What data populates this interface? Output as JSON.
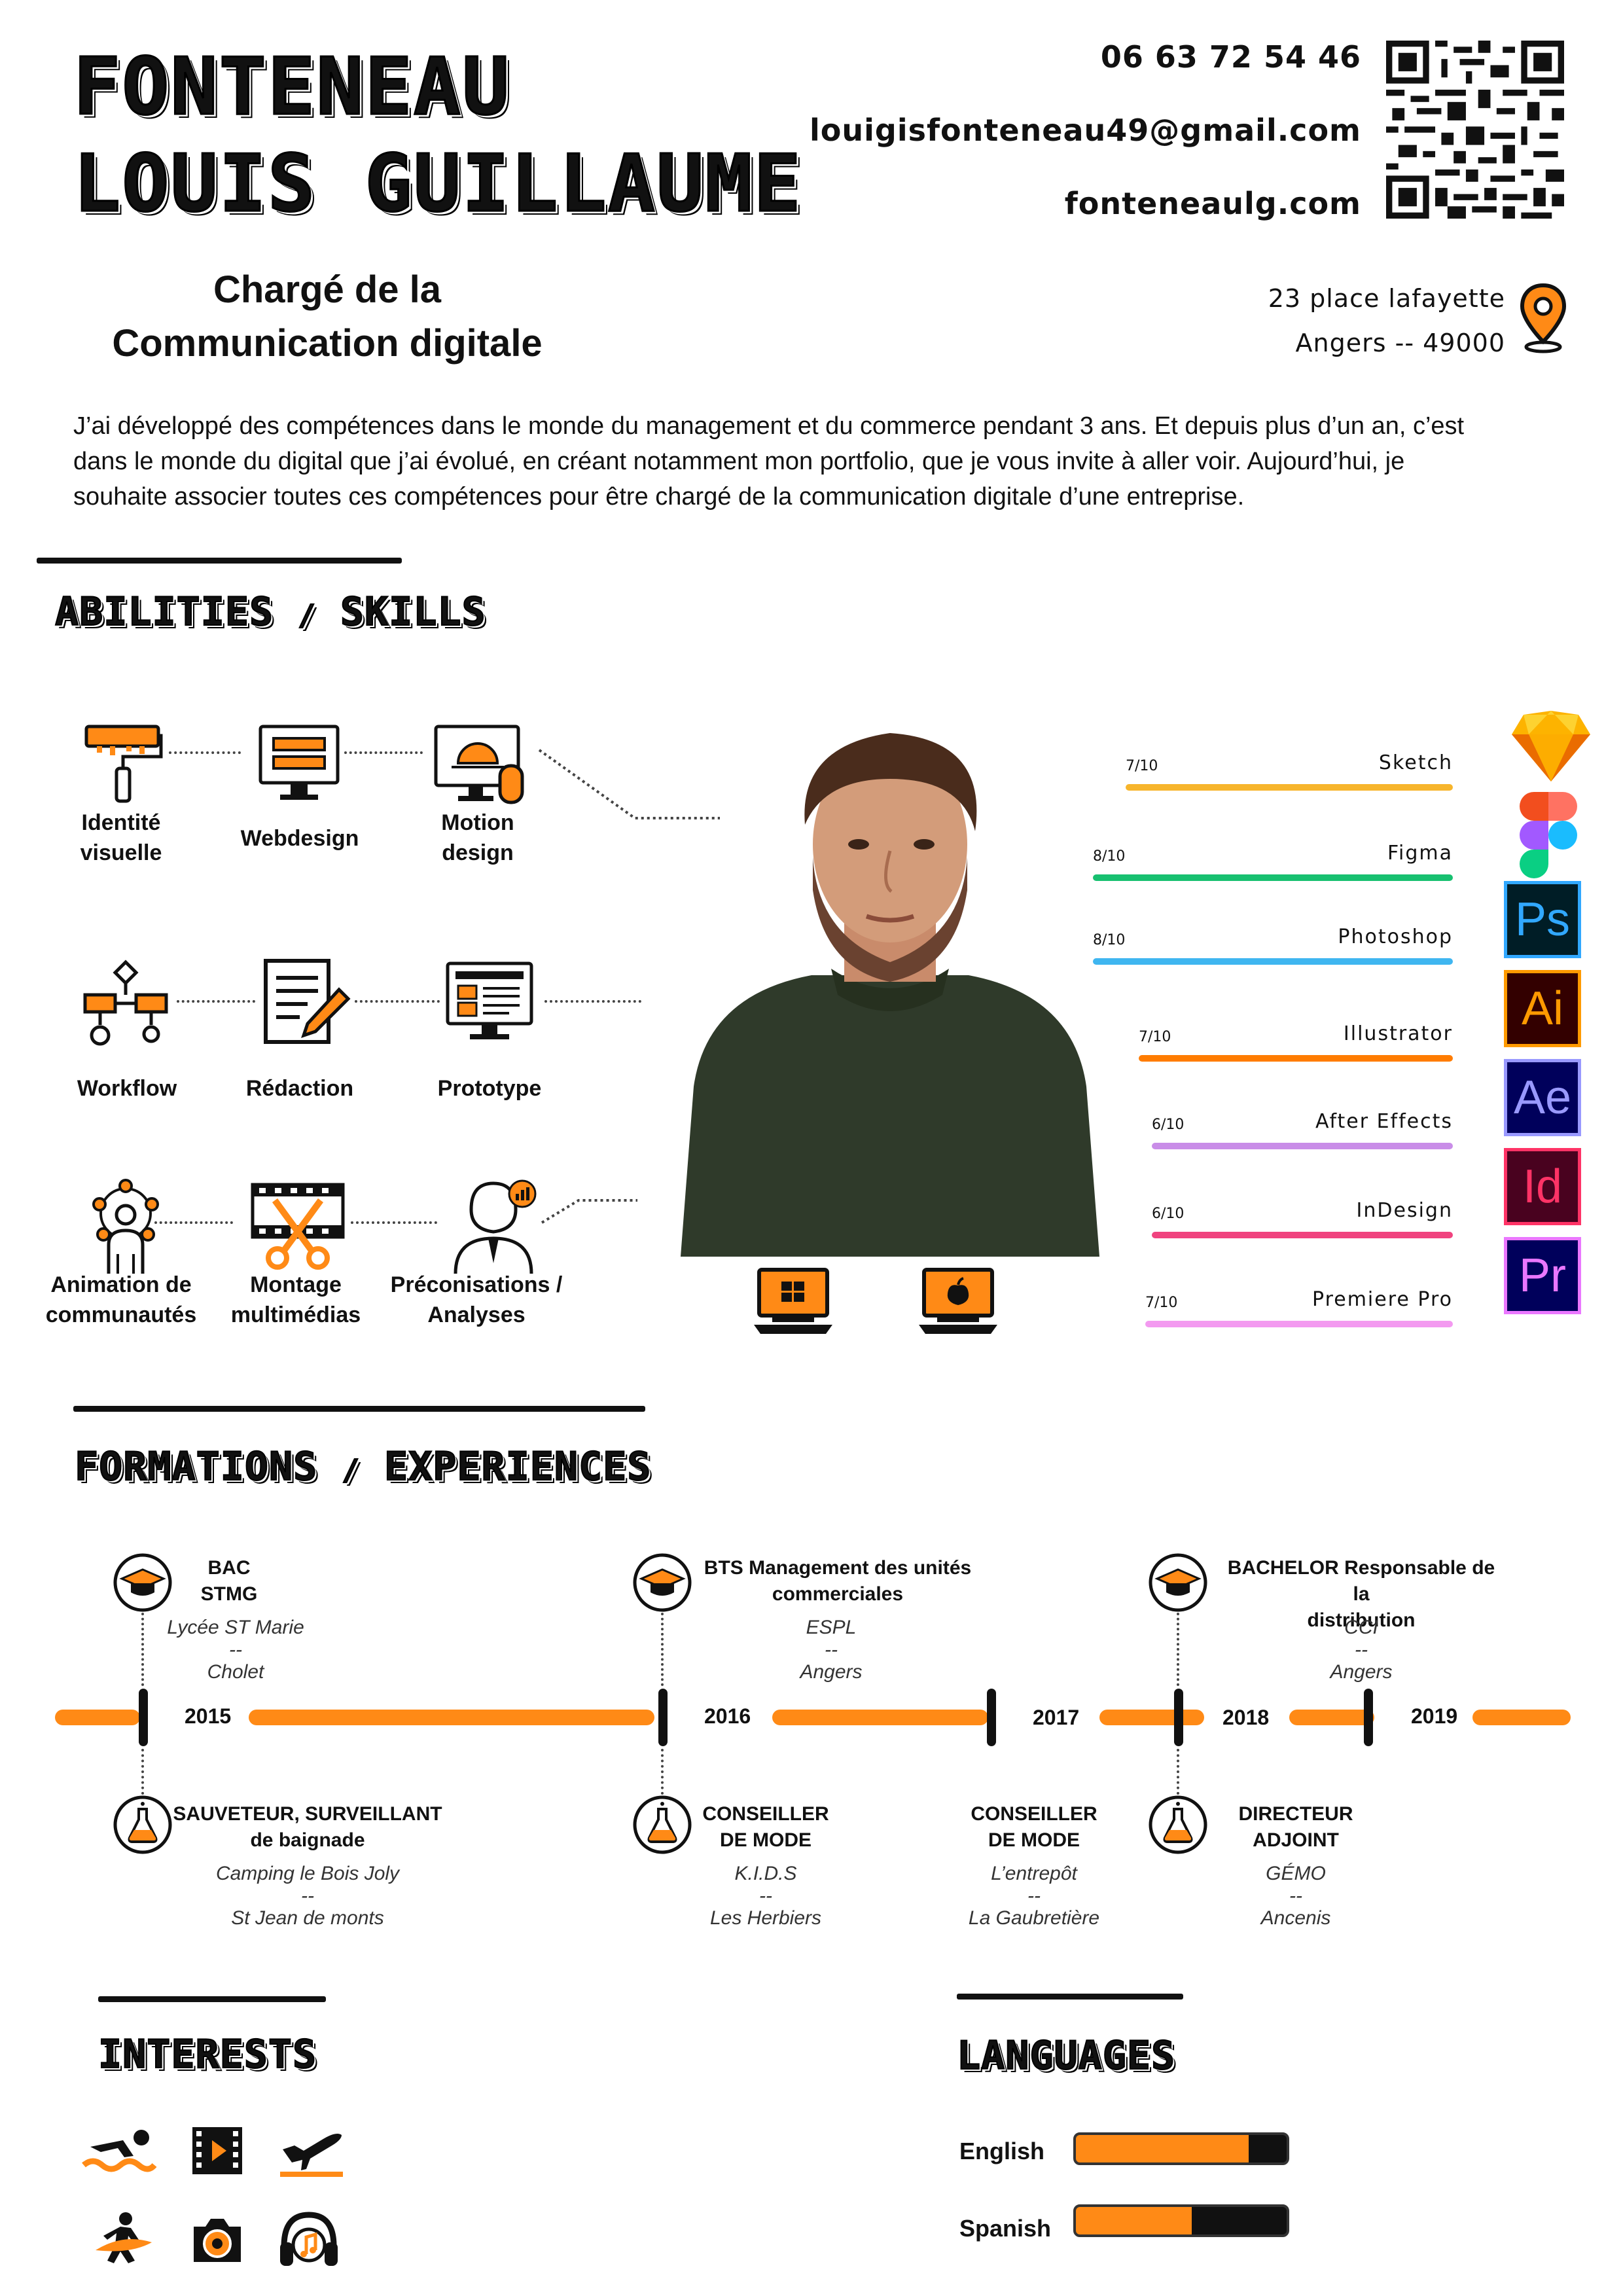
{
  "header": {
    "name_line1": "Fonteneau",
    "name_line2": "Louis Guillaume",
    "phone": "06 63 72 54 46",
    "email": "louigisfonteneau49@gmail.com",
    "website": "fonteneaulg.com",
    "job_title_line1": "Chargé de la",
    "job_title_line2": "Communication digitale",
    "address_line1": "23 place lafayette",
    "address_line2": "Angers -- 49000"
  },
  "intro": {
    "line1": "J’ai développé des compétences dans le monde du management et du commerce pendant 3 ans. Et depuis plus d’un an, c’est",
    "line2": "dans le monde du digital que j’ai évolué, en créant notamment mon portfolio, que je vous invite à aller voir. Aujourd’hui, je",
    "line3": "souhaite associer toutes ces compétences pour être chargé de la communication digitale d’une entreprise."
  },
  "sections": {
    "skills_left": "Abilities",
    "skills_sep": "/",
    "skills_right": "Skills",
    "formations_left": "Formations",
    "formations_sep": "/",
    "formations_right": "Experiences",
    "interests": "Interests",
    "languages": "Languages"
  },
  "skills": {
    "identite_1": "Identité",
    "identite_2": "visuelle",
    "webdesign": "Webdesign",
    "motion_1": "Motion",
    "motion_2": "design",
    "workflow": "Workflow",
    "redaction": "Rédaction",
    "prototype": "Prototype",
    "animation_1": "Animation de",
    "animation_2": "communautés",
    "montage_1": "Montage",
    "montage_2": "multimédias",
    "preco_1": "Préconisations /",
    "preco_2": "Analyses"
  },
  "tools": [
    {
      "name": "Sketch",
      "score": "7/10",
      "value": 7,
      "color": "#f7b52c",
      "badge": ""
    },
    {
      "name": "Figma",
      "score": "8/10",
      "value": 8,
      "color": "#17c070",
      "badge": ""
    },
    {
      "name": "Photoshop",
      "score": "8/10",
      "value": 8,
      "color": "#3fb6f0",
      "badge": "Ps"
    },
    {
      "name": "Illustrator",
      "score": "7/10",
      "value": 7,
      "color": "#ff7c00",
      "badge": "Ai"
    },
    {
      "name": "After Effects",
      "score": "6/10",
      "value": 6,
      "color": "#c98de8",
      "badge": "Ae"
    },
    {
      "name": "InDesign",
      "score": "6/10",
      "value": 6,
      "color": "#f0437f",
      "badge": "Id"
    },
    {
      "name": "Premiere Pro",
      "score": "7/10",
      "value": 7,
      "color": "#f39af0",
      "badge": "Pr"
    }
  ],
  "timeline": {
    "years": [
      "2015",
      "2016",
      "2017",
      "2018",
      "2019"
    ],
    "formations": [
      {
        "title_1": "BAC",
        "title_2": "STMG",
        "place": "Lycée ST Marie",
        "sep": "--",
        "city": "Cholet"
      },
      {
        "title_1": "BTS Management des unités",
        "title_2": "commerciales",
        "place": "ESPL",
        "sep": "--",
        "city": "Angers"
      },
      {
        "title_1b": "BACHELOR",
        "title_1": " Responsable de la",
        "title_2": "distribution",
        "place": "CCI",
        "sep": "--",
        "city": "Angers"
      }
    ],
    "experiences": [
      {
        "title_1": "SAUVETEUR, SURVEILLANT",
        "title_2": "de baignade",
        "place": "Camping le Bois Joly",
        "sep": "--",
        "city": "St Jean de monts"
      },
      {
        "title_1": "CONSEILLER",
        "title_2": "DE MODE",
        "place": "K.I.D.S",
        "sep": "--",
        "city": "Les Herbiers"
      },
      {
        "title_1": "CONSEILLER",
        "title_2": "DE MODE",
        "place": "L’entrepôt",
        "sep": "--",
        "city": "La Gaubretière"
      },
      {
        "title_1": "DIRECTEUR",
        "title_2": "ADJOINT",
        "place": "GÉMO",
        "sep": "--",
        "city": "Ancenis"
      }
    ]
  },
  "languages": [
    {
      "name": "English",
      "level": 0.82
    },
    {
      "name": "Spanish",
      "level": 0.55
    }
  ],
  "colors": {
    "accent": "#ff8a16",
    "dark": "#111111"
  }
}
